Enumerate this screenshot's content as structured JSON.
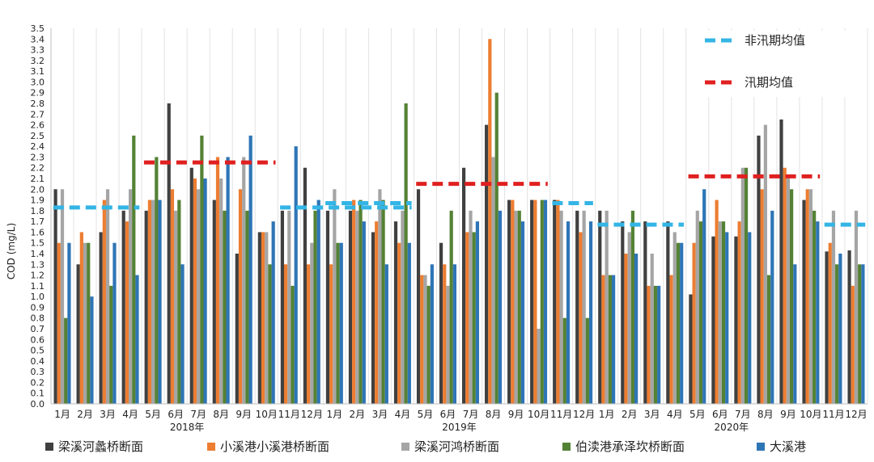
{
  "chart_data": {
    "type": "bar",
    "ylabel": "COD (mg/L)",
    "ylim": [
      0,
      3.5
    ],
    "ytick_step": 0.1,
    "grid": "vertical",
    "categories": [
      "1月",
      "2月",
      "3月",
      "4月",
      "5月",
      "6月",
      "7月",
      "8月",
      "9月",
      "10月",
      "11月",
      "12月",
      "1月",
      "2月",
      "3月",
      "4月",
      "5月",
      "6月",
      "7月",
      "8月",
      "9月",
      "10月",
      "11月",
      "12月",
      "1月",
      "2月",
      "3月",
      "4月",
      "5月",
      "6月",
      "7月",
      "8月",
      "9月",
      "10月",
      "11月",
      "12月"
    ],
    "years": [
      {
        "label": "2018年",
        "start": 0,
        "end": 11
      },
      {
        "label": "2019年",
        "start": 12,
        "end": 23
      },
      {
        "label": "2020年",
        "start": 24,
        "end": 35
      }
    ],
    "series": [
      {
        "name": "梁溪河蠡桥断面",
        "color": "#404040",
        "values": [
          2.0,
          1.3,
          1.6,
          1.8,
          1.8,
          2.8,
          2.2,
          1.9,
          1.4,
          1.6,
          1.8,
          2.2,
          1.8,
          1.8,
          1.6,
          1.7,
          2.0,
          1.5,
          2.2,
          2.6,
          1.9,
          1.9,
          1.9,
          1.8,
          1.8,
          1.7,
          1.7,
          1.7,
          1.02,
          1.56,
          1.56,
          2.5,
          2.65,
          1.9,
          1.42,
          1.43
        ]
      },
      {
        "name": "小溪港小溪港桥断面",
        "color": "#ed7d31",
        "values": [
          1.5,
          1.6,
          1.9,
          1.7,
          1.9,
          2.0,
          2.1,
          2.3,
          2.0,
          1.6,
          1.3,
          1.3,
          1.3,
          1.9,
          1.7,
          1.5,
          1.2,
          1.3,
          1.6,
          3.4,
          1.9,
          1.9,
          1.9,
          1.6,
          1.2,
          1.4,
          1.1,
          1.2,
          1.5,
          1.9,
          1.7,
          2.0,
          2.2,
          2.0,
          1.5,
          1.1
        ]
      },
      {
        "name": "梁溪河鸿桥断面",
        "color": "#a5a5a5",
        "values": [
          2.0,
          1.5,
          2.0,
          2.0,
          1.9,
          1.8,
          2.0,
          2.1,
          2.3,
          1.6,
          1.8,
          1.5,
          2.0,
          1.8,
          2.0,
          1.8,
          1.2,
          1.1,
          1.8,
          2.3,
          1.8,
          0.7,
          1.8,
          1.8,
          1.8,
          1.6,
          1.4,
          1.6,
          1.8,
          1.7,
          2.2,
          2.6,
          2.1,
          2.0,
          1.8,
          1.8
        ]
      },
      {
        "name": "伯渎港承泽坎桥断面",
        "color": "#548235",
        "values": [
          0.8,
          1.5,
          1.1,
          2.5,
          2.3,
          1.9,
          2.5,
          1.8,
          1.8,
          1.3,
          1.1,
          1.8,
          1.5,
          1.9,
          1.9,
          2.8,
          1.1,
          1.8,
          1.6,
          2.9,
          1.8,
          1.9,
          0.8,
          0.8,
          1.2,
          1.8,
          1.1,
          1.5,
          1.7,
          1.7,
          2.2,
          1.2,
          2.0,
          1.8,
          1.3,
          1.3
        ]
      },
      {
        "name": "大溪港",
        "color": "#2e75b6",
        "values": [
          1.5,
          1.0,
          1.5,
          1.2,
          1.9,
          1.3,
          2.1,
          2.3,
          2.5,
          1.7,
          2.4,
          1.9,
          1.5,
          1.7,
          1.3,
          1.5,
          1.3,
          1.3,
          1.7,
          1.8,
          1.7,
          1.9,
          1.7,
          1.7,
          1.2,
          1.4,
          1.1,
          1.5,
          2.0,
          1.6,
          1.6,
          1.8,
          1.3,
          1.7,
          1.4,
          1.3
        ]
      }
    ],
    "reference_lines": [
      {
        "legend": "非汛期均值",
        "color": "#33b5e5",
        "segments": [
          {
            "from": 0,
            "to": 3,
            "value": 1.83
          },
          {
            "from": 10,
            "to": 15,
            "value": 1.83
          },
          {
            "from": 12,
            "to": 15,
            "value": 1.87
          },
          {
            "from": 22,
            "to": 23,
            "value": 1.87
          },
          {
            "from": 24,
            "to": 27,
            "value": 1.67
          },
          {
            "from": 34,
            "to": 35,
            "value": 1.67
          }
        ]
      },
      {
        "legend": "汛期均值",
        "color": "#e02020",
        "segments": [
          {
            "from": 4,
            "to": 9,
            "value": 2.25
          },
          {
            "from": 16,
            "to": 21,
            "value": 2.05
          },
          {
            "from": 28,
            "to": 33,
            "value": 2.12
          }
        ]
      }
    ]
  }
}
